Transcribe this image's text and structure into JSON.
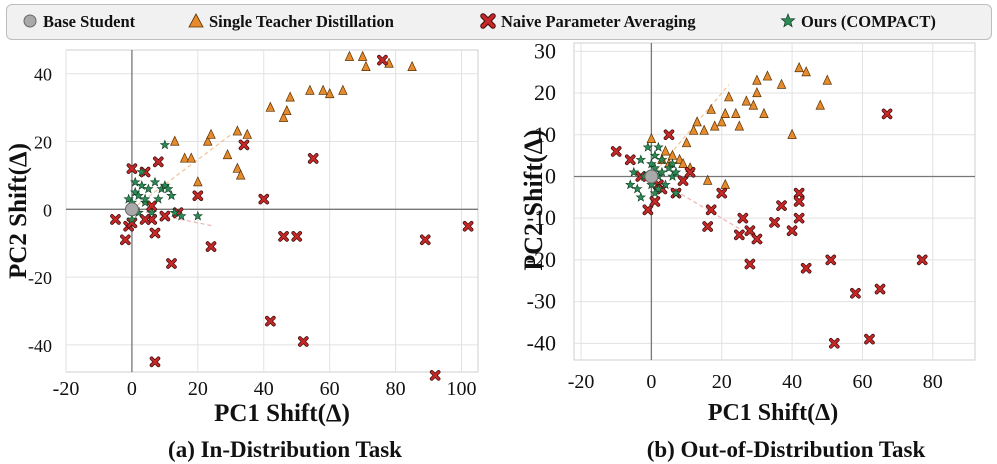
{
  "legend": [
    {
      "name": "Base Student",
      "marker": "circle",
      "color": "#a9a9a9"
    },
    {
      "name": "Single Teacher Distillation",
      "marker": "triangle",
      "color": "#e68a2e"
    },
    {
      "name": "Naive Parameter Averaging",
      "marker": "x",
      "color": "#c62828"
    },
    {
      "name": "Ours (COMPACT)",
      "marker": "star",
      "color": "#2e8b57"
    }
  ],
  "chart_data": [
    {
      "type": "scatter",
      "title": "(a) In-Distribution Task",
      "xlabel": "PC1 Shift(Δ)",
      "ylabel": "PC2 Shift(Δ)",
      "xlim": [
        -20,
        105
      ],
      "ylim": [
        -48,
        47
      ],
      "xticks": [
        -20,
        0,
        20,
        40,
        60,
        80,
        100
      ],
      "yticks": [
        -40,
        -20,
        0,
        20,
        40
      ],
      "tick_labels_x": [
        "-20",
        "0",
        "20",
        "40",
        "60",
        "80",
        "100"
      ],
      "tick_labels_y": [
        "-40",
        "-20",
        "0",
        "20",
        "40"
      ],
      "grid": true,
      "series": [
        {
          "name": "Base Student",
          "points": [
            [
              0,
              0
            ]
          ]
        },
        {
          "name": "Single Teacher Distillation",
          "points": [
            [
              13,
              20
            ],
            [
              16,
              15
            ],
            [
              18,
              15
            ],
            [
              20,
              8
            ],
            [
              23,
              20
            ],
            [
              24,
              22
            ],
            [
              29,
              16
            ],
            [
              32,
              23
            ],
            [
              35,
              22
            ],
            [
              42,
              30
            ],
            [
              46,
              27
            ],
            [
              47,
              29
            ],
            [
              48,
              33
            ],
            [
              54,
              35
            ],
            [
              58,
              35
            ],
            [
              60,
              34
            ],
            [
              64,
              35
            ],
            [
              70,
              45
            ],
            [
              71,
              42
            ],
            [
              78,
              43
            ],
            [
              85,
              42
            ],
            [
              66,
              45
            ],
            [
              32,
              12
            ],
            [
              33,
              10
            ]
          ]
        },
        {
          "name": "Naive Parameter Averaging",
          "points": [
            [
              0,
              12
            ],
            [
              4,
              11
            ],
            [
              6,
              1
            ],
            [
              7,
              -7
            ],
            [
              8,
              14
            ],
            [
              10,
              -2
            ],
            [
              12,
              -16
            ],
            [
              14,
              -1
            ],
            [
              20,
              4
            ],
            [
              24,
              -11
            ],
            [
              34,
              19
            ],
            [
              40,
              3
            ],
            [
              42,
              -33
            ],
            [
              46,
              -8
            ],
            [
              50,
              -8
            ],
            [
              52,
              -39
            ],
            [
              55,
              15
            ],
            [
              76,
              44
            ],
            [
              89,
              -9
            ],
            [
              92,
              -49
            ],
            [
              102,
              -5
            ],
            [
              -5,
              -3
            ],
            [
              -2,
              -9
            ],
            [
              -1,
              -5
            ],
            [
              6,
              -3
            ],
            [
              7,
              -45
            ],
            [
              4,
              -3
            ],
            [
              0,
              -4
            ]
          ]
        },
        {
          "name": "Ours (COMPACT)",
          "points": [
            [
              -1,
              3
            ],
            [
              0,
              2
            ],
            [
              1,
              5
            ],
            [
              2,
              -1
            ],
            [
              2,
              4
            ],
            [
              3,
              7
            ],
            [
              4,
              2
            ],
            [
              5,
              6
            ],
            [
              6,
              -1
            ],
            [
              7,
              8
            ],
            [
              8,
              3
            ],
            [
              9,
              6
            ],
            [
              10,
              7
            ],
            [
              11,
              6
            ],
            [
              12,
              4
            ],
            [
              13,
              -1
            ],
            [
              10,
              19
            ],
            [
              15,
              -2
            ],
            [
              20,
              -2
            ],
            [
              3,
              11
            ],
            [
              1,
              8
            ],
            [
              0,
              -3
            ],
            [
              1,
              0
            ],
            [
              4,
              3
            ]
          ]
        }
      ]
    },
    {
      "type": "scatter",
      "title": "(b) Out-of-Distribution Task",
      "xlabel": "PC1 Shift(Δ)",
      "ylabel": "PC2 Shift(Δ)",
      "xlim": [
        -22,
        92
      ],
      "ylim": [
        -44,
        32
      ],
      "xticks": [
        -20,
        0,
        20,
        40,
        60,
        80
      ],
      "yticks": [
        -40,
        -30,
        -20,
        -10,
        0,
        10,
        20,
        30
      ],
      "tick_labels_x": [
        "-20",
        "0",
        "20",
        "40",
        "60",
        "80"
      ],
      "tick_labels_y": [
        "-40",
        "-30",
        "-20",
        "-10",
        "0",
        "10",
        "20",
        "30"
      ],
      "grid": true,
      "series": [
        {
          "name": "Base Student",
          "points": [
            [
              0,
              0
            ]
          ]
        },
        {
          "name": "Single Teacher Distillation",
          "points": [
            [
              0,
              9
            ],
            [
              3,
              4
            ],
            [
              4,
              6
            ],
            [
              5,
              3
            ],
            [
              6,
              5
            ],
            [
              8,
              4
            ],
            [
              9,
              3
            ],
            [
              10,
              8
            ],
            [
              11,
              2
            ],
            [
              12,
              11
            ],
            [
              13,
              13
            ],
            [
              15,
              11
            ],
            [
              17,
              16
            ],
            [
              18,
              12
            ],
            [
              20,
              13
            ],
            [
              21,
              15
            ],
            [
              22,
              19
            ],
            [
              24,
              15
            ],
            [
              25,
              12
            ],
            [
              27,
              18
            ],
            [
              29,
              17
            ],
            [
              30,
              20
            ],
            [
              30,
              23
            ],
            [
              32,
              15
            ],
            [
              33,
              24
            ],
            [
              37,
              22
            ],
            [
              42,
              26
            ],
            [
              44,
              25
            ],
            [
              48,
              17
            ],
            [
              50,
              23
            ],
            [
              16,
              -1
            ],
            [
              21,
              -2
            ],
            [
              40,
              10
            ]
          ]
        },
        {
          "name": "Naive Parameter Averaging",
          "points": [
            [
              -10,
              6
            ],
            [
              -6,
              4
            ],
            [
              -3,
              0
            ],
            [
              -1,
              -8
            ],
            [
              1,
              -6
            ],
            [
              2,
              -2
            ],
            [
              3,
              -3
            ],
            [
              5,
              10
            ],
            [
              7,
              -4
            ],
            [
              9,
              -1
            ],
            [
              11,
              1
            ],
            [
              16,
              -12
            ],
            [
              17,
              -8
            ],
            [
              20,
              -4
            ],
            [
              25,
              -14
            ],
            [
              28,
              -13
            ],
            [
              28,
              -21
            ],
            [
              30,
              -15
            ],
            [
              35,
              -11
            ],
            [
              37,
              -7
            ],
            [
              40,
              -13
            ],
            [
              42,
              -4
            ],
            [
              42,
              -6
            ],
            [
              42,
              -10
            ],
            [
              44,
              -22
            ],
            [
              51,
              -20
            ],
            [
              52,
              -40
            ],
            [
              58,
              -28
            ],
            [
              62,
              -39
            ],
            [
              65,
              -27
            ],
            [
              67,
              15
            ],
            [
              77,
              -20
            ],
            [
              26,
              -10
            ]
          ]
        },
        {
          "name": "Ours (COMPACT)",
          "points": [
            [
              -5,
              1
            ],
            [
              -4,
              -3
            ],
            [
              -3,
              4
            ],
            [
              -2,
              0
            ],
            [
              -1,
              7
            ],
            [
              0,
              3
            ],
            [
              1,
              2
            ],
            [
              1,
              5
            ],
            [
              2,
              0
            ],
            [
              2,
              -3
            ],
            [
              3,
              1
            ],
            [
              3,
              4
            ],
            [
              4,
              -2
            ],
            [
              5,
              2
            ],
            [
              6,
              0
            ],
            [
              6,
              3
            ],
            [
              7,
              1
            ],
            [
              7,
              -4
            ],
            [
              -6,
              -2
            ],
            [
              -3,
              -5
            ],
            [
              2,
              7
            ],
            [
              0,
              -2
            ],
            [
              1,
              -4
            ]
          ]
        }
      ]
    }
  ]
}
